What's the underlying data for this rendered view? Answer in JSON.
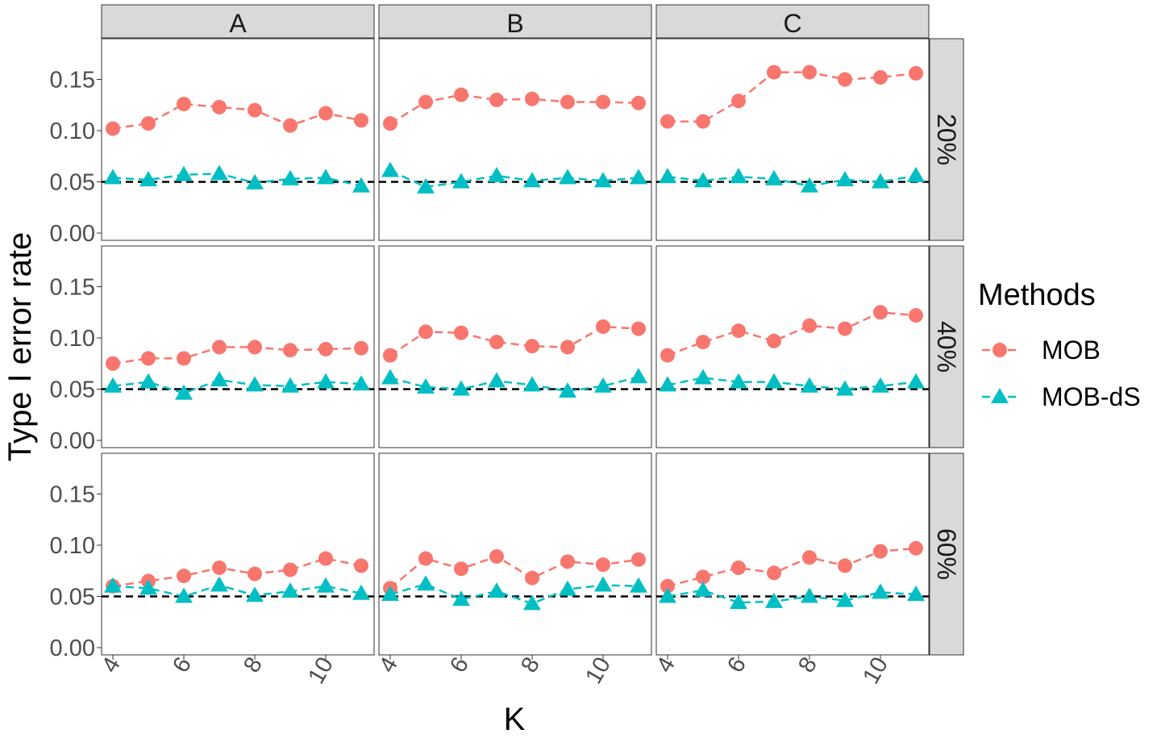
{
  "chart_data": {
    "type": "line",
    "title": "",
    "xlabel": "K",
    "ylabel": "Type I error rate",
    "x": [
      4,
      5,
      6,
      7,
      8,
      9,
      10,
      11
    ],
    "x_ticks": [
      4,
      6,
      8,
      10
    ],
    "y_ticks": [
      "0.00",
      "0.05",
      "0.10",
      "0.15"
    ],
    "ylim": [
      0,
      0.19
    ],
    "reference_line": 0.05,
    "grid": false,
    "legend": {
      "title": "Methods",
      "placement": "right"
    },
    "facet_columns": [
      "A",
      "B",
      "C"
    ],
    "facet_rows": [
      "20%",
      "40%",
      "60%"
    ],
    "series_styles": [
      {
        "name": "MOB",
        "color": "#F8766D",
        "marker": "circle"
      },
      {
        "name": "MOB-dS",
        "color": "#00BFC4",
        "marker": "triangle"
      }
    ],
    "panels": [
      {
        "column": "A",
        "row": "20%",
        "MOB": [
          0.102,
          0.107,
          0.126,
          0.123,
          0.12,
          0.105,
          0.117,
          0.11
        ],
        "MOB-dS": [
          0.054,
          0.052,
          0.057,
          0.058,
          0.049,
          0.053,
          0.054,
          0.046
        ]
      },
      {
        "column": "B",
        "row": "20%",
        "MOB": [
          0.107,
          0.128,
          0.135,
          0.13,
          0.131,
          0.128,
          0.128,
          0.127
        ],
        "MOB-dS": [
          0.061,
          0.045,
          0.05,
          0.056,
          0.051,
          0.054,
          0.051,
          0.054
        ]
      },
      {
        "column": "C",
        "row": "20%",
        "MOB": [
          0.109,
          0.109,
          0.129,
          0.157,
          0.157,
          0.15,
          0.152,
          0.156
        ],
        "MOB-dS": [
          0.055,
          0.051,
          0.055,
          0.053,
          0.046,
          0.052,
          0.05,
          0.056
        ]
      },
      {
        "column": "A",
        "row": "40%",
        "MOB": [
          0.075,
          0.08,
          0.08,
          0.091,
          0.091,
          0.088,
          0.089,
          0.09
        ],
        "MOB-dS": [
          0.053,
          0.057,
          0.046,
          0.059,
          0.054,
          0.053,
          0.057,
          0.055
        ]
      },
      {
        "column": "B",
        "row": "40%",
        "MOB": [
          0.083,
          0.106,
          0.105,
          0.096,
          0.092,
          0.091,
          0.111,
          0.109
        ],
        "MOB-dS": [
          0.061,
          0.052,
          0.05,
          0.058,
          0.054,
          0.048,
          0.053,
          0.062
        ]
      },
      {
        "column": "C",
        "row": "40%",
        "MOB": [
          0.083,
          0.096,
          0.107,
          0.097,
          0.112,
          0.109,
          0.125,
          0.122
        ],
        "MOB-dS": [
          0.054,
          0.061,
          0.057,
          0.057,
          0.053,
          0.05,
          0.053,
          0.057
        ]
      },
      {
        "column": "A",
        "row": "60%",
        "MOB": [
          0.06,
          0.065,
          0.07,
          0.078,
          0.072,
          0.076,
          0.087,
          0.08
        ],
        "MOB-dS": [
          0.06,
          0.058,
          0.05,
          0.061,
          0.051,
          0.055,
          0.06,
          0.053
        ]
      },
      {
        "column": "B",
        "row": "60%",
        "MOB": [
          0.058,
          0.087,
          0.077,
          0.089,
          0.068,
          0.084,
          0.081,
          0.086
        ],
        "MOB-dS": [
          0.052,
          0.062,
          0.047,
          0.055,
          0.043,
          0.057,
          0.061,
          0.06
        ]
      },
      {
        "column": "C",
        "row": "60%",
        "MOB": [
          0.06,
          0.069,
          0.078,
          0.073,
          0.088,
          0.08,
          0.094,
          0.097
        ],
        "MOB-dS": [
          0.05,
          0.056,
          0.044,
          0.045,
          0.05,
          0.046,
          0.054,
          0.052
        ]
      }
    ]
  }
}
